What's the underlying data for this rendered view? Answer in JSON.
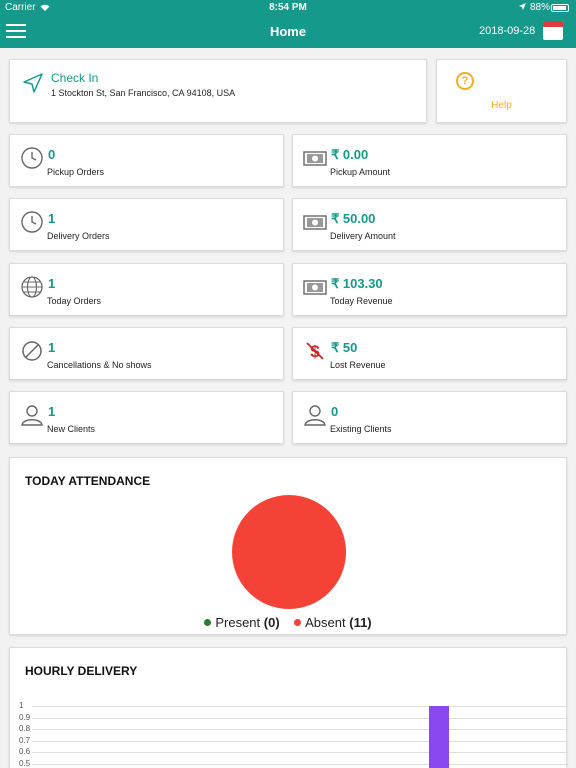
{
  "status_bar": {
    "carrier": "Carrier",
    "time": "8:54 PM",
    "battery": "88%"
  },
  "header": {
    "title": "Home",
    "date": "2018-09-28"
  },
  "checkin": {
    "title": "Check In",
    "address": "1 Stockton St, San Francisco, CA 94108, USA"
  },
  "help": {
    "icon": "?",
    "label": "Help"
  },
  "stats": [
    {
      "value": "0",
      "label": "Pickup Orders",
      "icon": "clock-icon"
    },
    {
      "value": "₹ 0.00",
      "label": "Pickup Amount",
      "icon": "money-icon"
    },
    {
      "value": "1",
      "label": "Delivery Orders",
      "icon": "clock-icon"
    },
    {
      "value": "₹ 50.00",
      "label": "Delivery Amount",
      "icon": "money-icon"
    },
    {
      "value": "1",
      "label": "Today Orders",
      "icon": "globe-icon"
    },
    {
      "value": "₹ 103.30",
      "label": "Today Revenue",
      "icon": "money-icon"
    },
    {
      "value": "1",
      "label": "Cancellations & No shows",
      "icon": "ban-icon"
    },
    {
      "value": "₹ 50",
      "label": "Lost Revenue",
      "icon": "no-dollar-icon"
    },
    {
      "value": "1",
      "label": "New Clients",
      "icon": "user-icon"
    },
    {
      "value": "0",
      "label": "Existing Clients",
      "icon": "user-icon"
    }
  ],
  "attendance": {
    "title": "TODAY ATTENDANCE",
    "present_label": "Present",
    "present_count": "(0)",
    "absent_label": "Absent",
    "absent_count": "(11)",
    "present_color": "#2e7d32",
    "absent_color": "#f44336"
  },
  "hourly": {
    "title": "HOURLY DELIVERY",
    "y_ticks": [
      "1",
      "0.9",
      "0.8",
      "0.7",
      "0.6",
      "0.5"
    ],
    "bar_value": 1,
    "bar_color": "#8b48f0"
  },
  "colors": {
    "accent": "#14998a",
    "help": "#f2b01e"
  }
}
